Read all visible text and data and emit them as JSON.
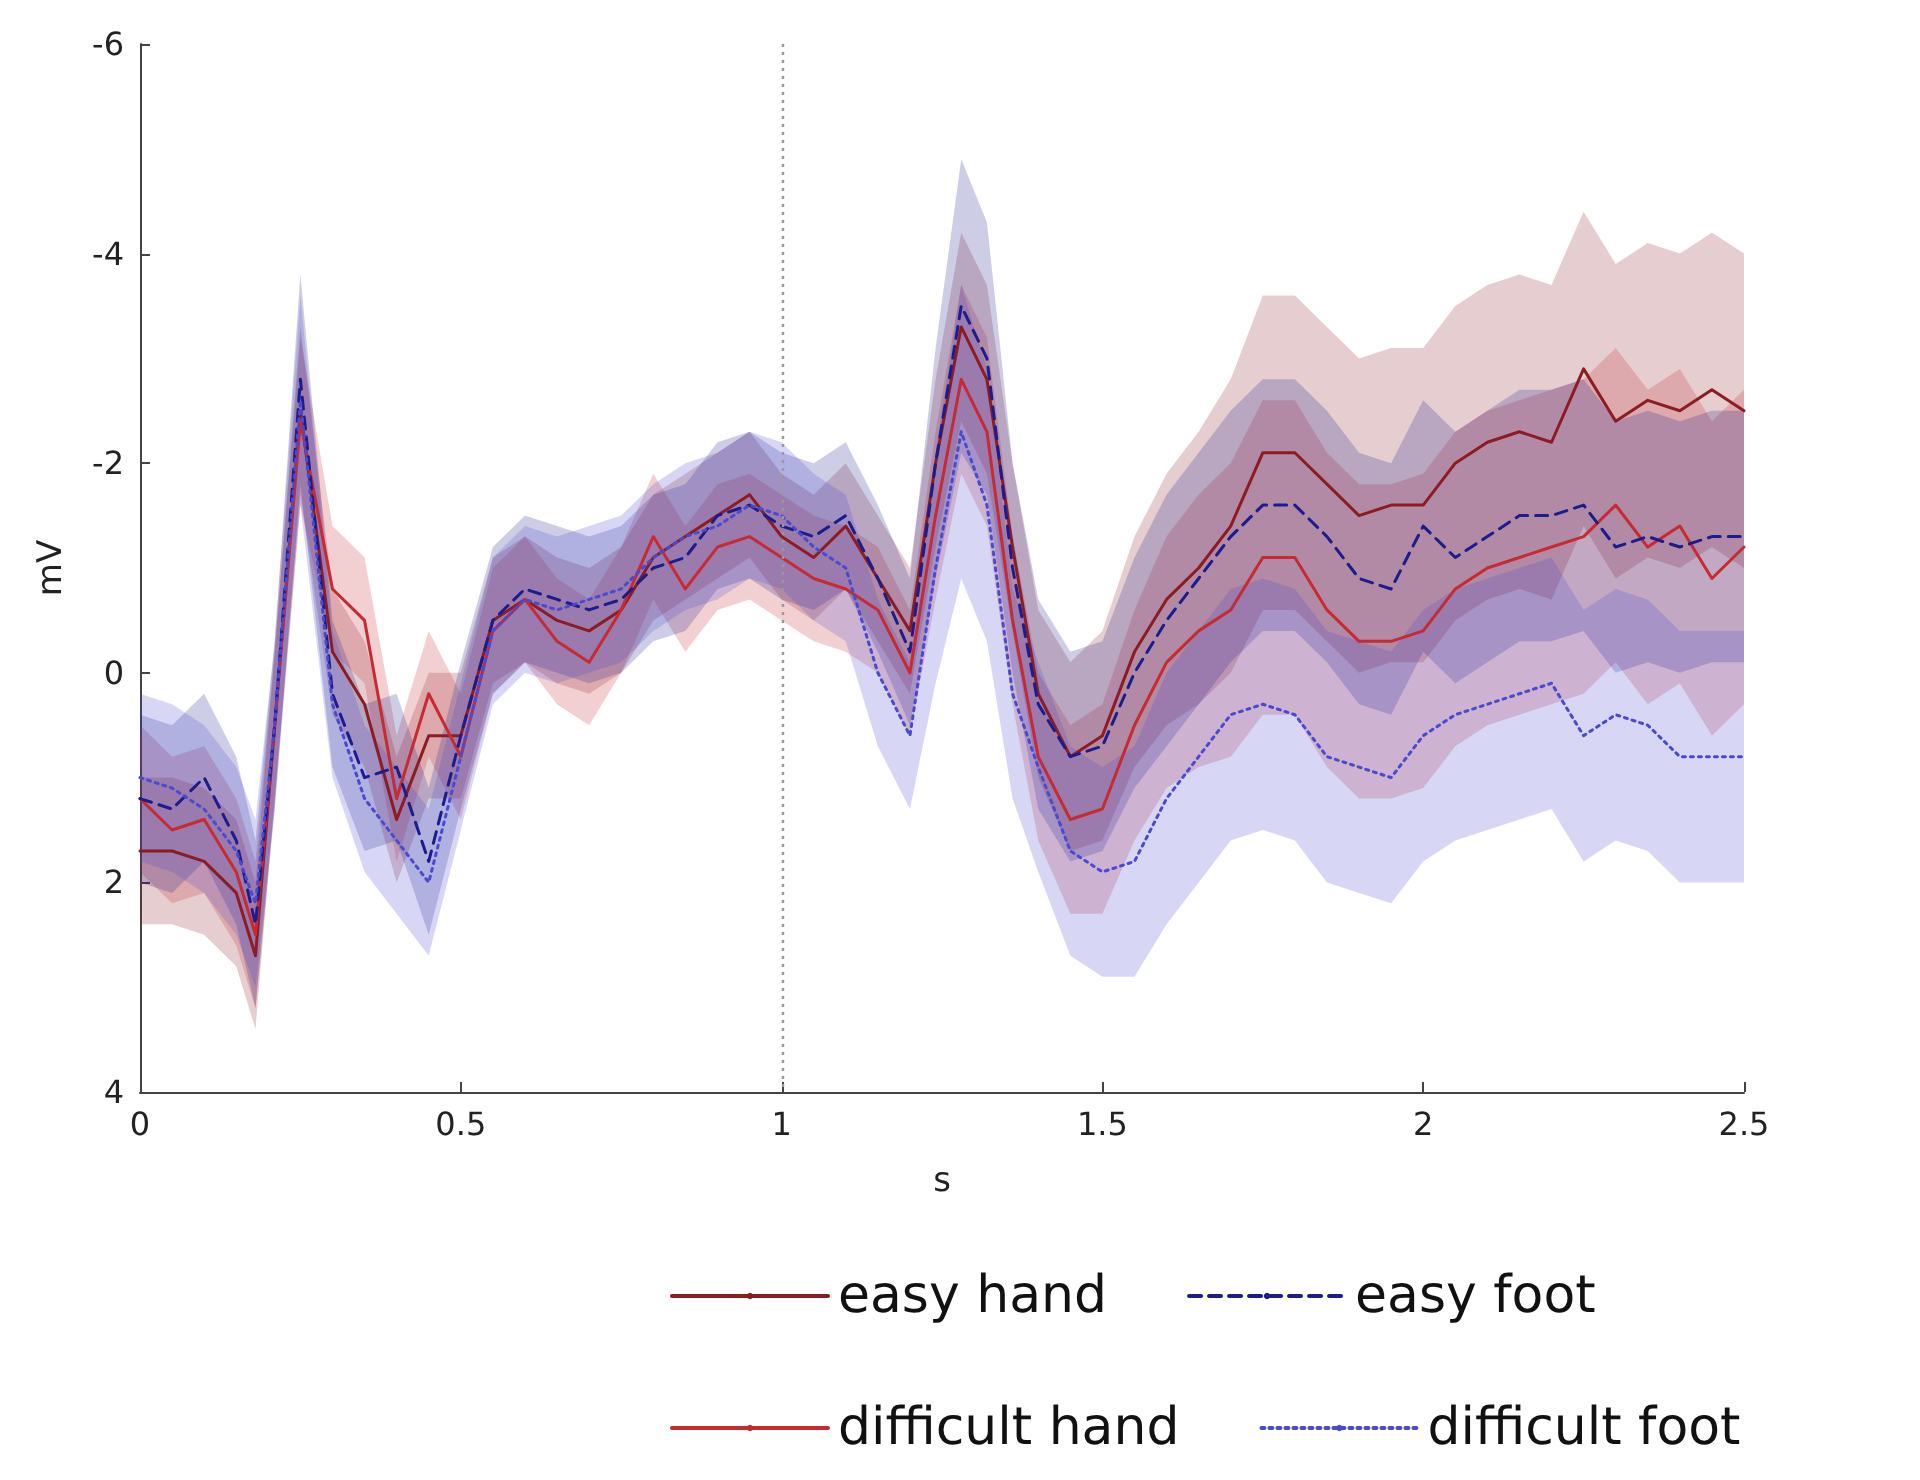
{
  "chart_data": {
    "type": "line",
    "xlabel": "s",
    "ylabel": "mV",
    "x": [
      0,
      0.05,
      0.1,
      0.15,
      0.18,
      0.21,
      0.25,
      0.3,
      0.35,
      0.4,
      0.45,
      0.5,
      0.55,
      0.6,
      0.65,
      0.7,
      0.75,
      0.8,
      0.85,
      0.9,
      0.95,
      1,
      1.05,
      1.1,
      1.15,
      1.2,
      1.24,
      1.28,
      1.32,
      1.36,
      1.4,
      1.45,
      1.5,
      1.55,
      1.6,
      1.65,
      1.7,
      1.75,
      1.8,
      1.85,
      1.9,
      1.95,
      2,
      2.05,
      2.1,
      2.15,
      2.2,
      2.25,
      2.3,
      2.35,
      2.4,
      2.45,
      2.5
    ],
    "series": [
      {
        "name": "easy hand",
        "color": "#8c1c24",
        "line_style": "solid",
        "values": [
          1.7,
          1.7,
          1.8,
          2.1,
          2.7,
          0.5,
          -2.5,
          -0.2,
          0.3,
          1.4,
          0.6,
          0.6,
          -0.5,
          -0.7,
          -0.5,
          -0.4,
          -0.6,
          -1.1,
          -1.3,
          -1.5,
          -1.7,
          -1.3,
          -1.1,
          -1.4,
          -0.9,
          -0.4,
          -2.0,
          -3.3,
          -2.8,
          -1.2,
          0.2,
          0.8,
          0.6,
          -0.2,
          -0.7,
          -1.0,
          -1.4,
          -2.1,
          -2.1,
          -1.8,
          -1.5,
          -1.6,
          -1.6,
          -2.0,
          -2.2,
          -2.3,
          -2.2,
          -2.9,
          -2.4,
          -2.6,
          -2.5,
          -2.7,
          -2.5
        ],
        "lower": [
          1.0,
          1.0,
          1.1,
          1.4,
          2.0,
          -0.2,
          -3.3,
          -0.8,
          -0.3,
          0.8,
          0.0,
          0.0,
          -1.1,
          -1.3,
          -1.1,
          -1.0,
          -1.2,
          -1.7,
          -1.9,
          -2.1,
          -2.3,
          -1.9,
          -1.7,
          -2.0,
          -1.5,
          -1.0,
          -2.8,
          -4.2,
          -3.7,
          -2.0,
          -0.6,
          -0.1,
          -0.4,
          -1.3,
          -1.9,
          -2.3,
          -2.8,
          -3.6,
          -3.6,
          -3.3,
          -3.0,
          -3.1,
          -3.1,
          -3.5,
          -3.7,
          -3.8,
          -3.7,
          -4.4,
          -3.9,
          -4.1,
          -4.0,
          -4.2,
          -4.0
        ],
        "upper": [
          2.4,
          2.4,
          2.5,
          2.8,
          3.4,
          1.2,
          -1.7,
          0.4,
          0.9,
          2.0,
          1.2,
          1.2,
          0.1,
          -0.1,
          0.1,
          0.2,
          0.0,
          -0.5,
          -0.7,
          -0.9,
          -1.1,
          -0.7,
          -0.5,
          -0.8,
          -0.3,
          0.2,
          -1.2,
          -2.4,
          -1.9,
          -0.4,
          1.0,
          1.7,
          1.6,
          0.9,
          0.5,
          0.3,
          0.0,
          -0.6,
          -0.6,
          -0.3,
          0.0,
          -0.1,
          -0.1,
          -0.5,
          -0.7,
          -0.8,
          -0.7,
          -1.4,
          -0.9,
          -1.1,
          -1.0,
          -1.2,
          -1.0
        ]
      },
      {
        "name": "difficult hand",
        "color": "#c62a32",
        "line_style": "solid",
        "values": [
          1.2,
          1.5,
          1.4,
          1.9,
          2.5,
          0.5,
          -2.4,
          -0.8,
          -0.5,
          1.2,
          0.2,
          0.8,
          -0.4,
          -0.7,
          -0.3,
          -0.1,
          -0.6,
          -1.3,
          -0.8,
          -1.2,
          -1.3,
          -1.1,
          -0.9,
          -0.8,
          -0.6,
          0.0,
          -1.5,
          -2.8,
          -2.3,
          -0.5,
          0.8,
          1.4,
          1.3,
          0.5,
          -0.1,
          -0.4,
          -0.6,
          -1.1,
          -1.1,
          -0.6,
          -0.3,
          -0.3,
          -0.4,
          -0.8,
          -1.0,
          -1.1,
          -1.2,
          -1.3,
          -1.6,
          -1.2,
          -1.4,
          -0.9,
          -1.2
        ],
        "lower": [
          0.5,
          0.8,
          0.7,
          1.2,
          1.8,
          -0.2,
          -3.2,
          -1.4,
          -1.1,
          0.6,
          -0.4,
          0.2,
          -1.0,
          -1.3,
          -0.9,
          -0.7,
          -1.2,
          -1.9,
          -1.4,
          -1.8,
          -1.9,
          -1.7,
          -1.5,
          -1.4,
          -1.2,
          -0.6,
          -2.3,
          -3.7,
          -3.2,
          -1.3,
          0.0,
          0.5,
          0.3,
          -0.6,
          -1.3,
          -1.7,
          -2.0,
          -2.6,
          -2.6,
          -2.1,
          -1.8,
          -1.8,
          -1.9,
          -2.3,
          -2.5,
          -2.6,
          -2.7,
          -2.8,
          -3.1,
          -2.7,
          -2.9,
          -2.4,
          -2.7
        ],
        "upper": [
          1.9,
          2.2,
          2.1,
          2.6,
          3.2,
          1.2,
          -1.6,
          -0.2,
          0.1,
          1.8,
          0.8,
          1.4,
          0.2,
          -0.1,
          0.3,
          0.5,
          0.0,
          -0.7,
          -0.2,
          -0.6,
          -0.7,
          -0.5,
          -0.3,
          -0.2,
          0.0,
          0.6,
          -0.7,
          -1.9,
          -1.4,
          0.3,
          1.6,
          2.3,
          2.3,
          1.6,
          1.1,
          0.9,
          0.8,
          0.4,
          0.4,
          0.9,
          1.2,
          1.2,
          1.1,
          0.7,
          0.5,
          0.4,
          0.3,
          0.2,
          -0.1,
          0.3,
          0.1,
          0.6,
          0.3
        ]
      },
      {
        "name": "easy foot",
        "color": "#1c1c8c",
        "line_style": "dashed",
        "values": [
          1.2,
          1.3,
          1.0,
          1.6,
          2.4,
          0.5,
          -2.8,
          0.2,
          1.0,
          0.9,
          1.8,
          0.6,
          -0.5,
          -0.8,
          -0.7,
          -0.6,
          -0.7,
          -1.0,
          -1.1,
          -1.5,
          -1.6,
          -1.4,
          -1.3,
          -1.5,
          -0.9,
          -0.2,
          -2.0,
          -3.5,
          -3.0,
          -1.0,
          0.3,
          0.8,
          0.7,
          0.0,
          -0.5,
          -0.9,
          -1.3,
          -1.6,
          -1.6,
          -1.3,
          -0.9,
          -0.8,
          -1.4,
          -1.1,
          -1.3,
          -1.5,
          -1.5,
          -1.6,
          -1.2,
          -1.3,
          -1.2,
          -1.3,
          -1.3
        ],
        "lower": [
          0.4,
          0.5,
          0.2,
          0.8,
          1.6,
          -0.3,
          -3.8,
          -0.5,
          0.3,
          0.2,
          1.1,
          -0.1,
          -1.2,
          -1.5,
          -1.4,
          -1.3,
          -1.4,
          -1.7,
          -1.8,
          -2.2,
          -2.3,
          -2.1,
          -2.0,
          -2.2,
          -1.6,
          -0.9,
          -3.1,
          -4.9,
          -4.3,
          -2.0,
          -0.7,
          -0.2,
          -0.3,
          -1.1,
          -1.7,
          -2.1,
          -2.5,
          -2.8,
          -2.8,
          -2.5,
          -2.1,
          -2.0,
          -2.6,
          -2.3,
          -2.5,
          -2.7,
          -2.7,
          -2.8,
          -2.4,
          -2.5,
          -2.4,
          -2.5,
          -2.5
        ],
        "upper": [
          2.0,
          2.1,
          1.8,
          2.4,
          3.2,
          1.3,
          -1.8,
          0.9,
          1.7,
          1.6,
          2.5,
          1.3,
          0.2,
          -0.1,
          0.0,
          0.1,
          0.0,
          -0.3,
          -0.4,
          -0.8,
          -0.9,
          -0.7,
          -0.6,
          -0.8,
          -0.2,
          0.5,
          -0.9,
          -2.1,
          -1.7,
          0.0,
          1.3,
          1.8,
          1.7,
          1.1,
          0.7,
          0.3,
          -0.1,
          -0.4,
          -0.4,
          -0.1,
          0.3,
          0.4,
          -0.2,
          0.1,
          -0.1,
          -0.3,
          -0.3,
          -0.4,
          0.0,
          -0.1,
          0.0,
          -0.1,
          -0.1
        ]
      },
      {
        "name": "difficult foot",
        "color": "#4a4ad0",
        "line_style": "dotted",
        "values": [
          1.0,
          1.1,
          1.3,
          1.7,
          2.2,
          0.5,
          -2.6,
          0.3,
          1.2,
          1.6,
          2.0,
          0.8,
          -0.4,
          -0.7,
          -0.6,
          -0.7,
          -0.8,
          -1.1,
          -1.3,
          -1.4,
          -1.6,
          -1.5,
          -1.2,
          -1.0,
          0.0,
          0.6,
          -1.0,
          -2.3,
          -1.6,
          0.2,
          0.9,
          1.7,
          1.9,
          1.8,
          1.2,
          0.8,
          0.4,
          0.3,
          0.4,
          0.8,
          0.9,
          1.0,
          0.6,
          0.4,
          0.3,
          0.2,
          0.1,
          0.6,
          0.4,
          0.5,
          0.8,
          0.8,
          0.8
        ],
        "lower": [
          0.2,
          0.3,
          0.5,
          0.9,
          1.4,
          -0.3,
          -3.6,
          -0.4,
          0.5,
          0.9,
          1.3,
          0.1,
          -1.1,
          -1.4,
          -1.3,
          -1.4,
          -1.5,
          -1.8,
          -2.0,
          -2.1,
          -2.3,
          -2.2,
          -1.9,
          -1.7,
          -0.7,
          -0.1,
          -2.1,
          -3.7,
          -2.9,
          -0.8,
          -0.1,
          0.7,
          0.9,
          0.7,
          0.0,
          -0.4,
          -0.8,
          -0.9,
          -0.8,
          -0.4,
          -0.3,
          -0.2,
          -0.6,
          -0.8,
          -0.9,
          -1.0,
          -1.1,
          -0.6,
          -0.8,
          -0.7,
          -0.4,
          -0.4,
          -0.4
        ],
        "upper": [
          1.8,
          1.9,
          2.1,
          2.5,
          3.0,
          1.3,
          -1.6,
          1.0,
          1.9,
          2.3,
          2.7,
          1.5,
          0.3,
          0.0,
          0.1,
          0.0,
          -0.1,
          -0.4,
          -0.6,
          -0.7,
          -0.9,
          -0.8,
          -0.5,
          -0.3,
          0.7,
          1.3,
          0.1,
          -0.9,
          -0.3,
          1.2,
          1.9,
          2.7,
          2.9,
          2.9,
          2.4,
          2.0,
          1.6,
          1.5,
          1.6,
          2.0,
          2.1,
          2.2,
          1.8,
          1.6,
          1.5,
          1.4,
          1.3,
          1.8,
          1.6,
          1.7,
          2.0,
          2.0,
          2.0
        ]
      }
    ],
    "xlim": [
      0,
      2.5
    ],
    "xticks": [
      0,
      0.5,
      1,
      1.5,
      2,
      2.5
    ],
    "ylim": [
      4,
      -6
    ],
    "yticks": [
      -6,
      -4,
      -2,
      0,
      2,
      4
    ],
    "ref_lines": [
      {
        "axis": "x",
        "value": 1,
        "color": "#999999",
        "line_style": "dotted"
      }
    ],
    "legend": "bottom",
    "grid": false
  }
}
